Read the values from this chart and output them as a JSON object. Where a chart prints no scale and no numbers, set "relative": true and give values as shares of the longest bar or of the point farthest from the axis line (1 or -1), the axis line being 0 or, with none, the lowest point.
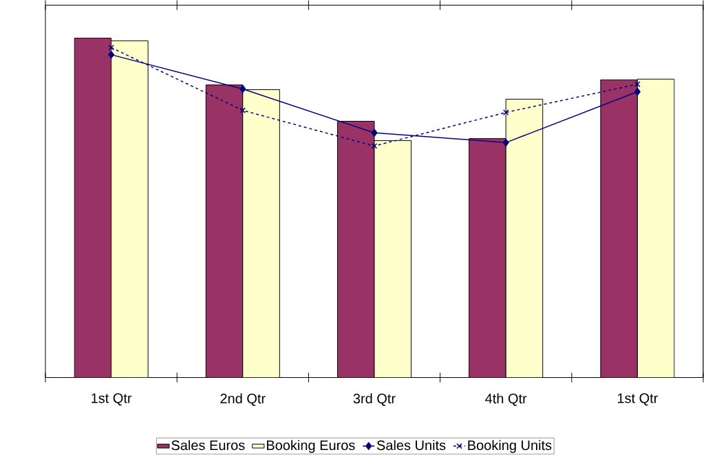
{
  "chart_data": {
    "type": "bar",
    "relative": true,
    "legend": "bottom",
    "categories": [
      "1st Qtr",
      "2nd Qtr",
      "3rd Qtr",
      "4th Qtr",
      "1st Qtr"
    ],
    "series": [
      {
        "name": "Sales Euros",
        "color": "#993366",
        "values": [
          1,
          0.862,
          0.755,
          0.704,
          0.877
        ]
      },
      {
        "name": "Booking Euros",
        "color": "#ffffcc",
        "values": [
          0.992,
          0.848,
          0.698,
          0.82,
          0.879
        ]
      },
      {
        "name": "Sales Units",
        "type": "line",
        "color": "#000080",
        "marker": "diamond",
        "line_style": "solid",
        "values": [
          0.951,
          0.85,
          0.721,
          0.692,
          0.842
        ]
      },
      {
        "name": "Booking Units",
        "type": "line",
        "color": "#000080",
        "marker": "cross",
        "line_style": "dashed",
        "values": [
          0.972,
          0.787,
          0.682,
          0.781,
          0.864
        ]
      }
    ]
  }
}
